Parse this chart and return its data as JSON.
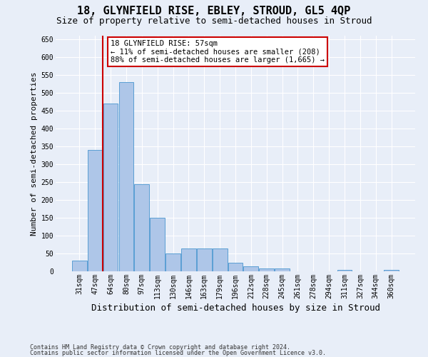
{
  "title": "18, GLYNFIELD RISE, EBLEY, STROUD, GL5 4QP",
  "subtitle": "Size of property relative to semi-detached houses in Stroud",
  "xlabel": "Distribution of semi-detached houses by size in Stroud",
  "ylabel": "Number of semi-detached properties",
  "categories": [
    "31sqm",
    "47sqm",
    "64sqm",
    "80sqm",
    "97sqm",
    "113sqm",
    "130sqm",
    "146sqm",
    "163sqm",
    "179sqm",
    "196sqm",
    "212sqm",
    "228sqm",
    "245sqm",
    "261sqm",
    "278sqm",
    "294sqm",
    "311sqm",
    "327sqm",
    "344sqm",
    "360sqm"
  ],
  "values": [
    30,
    340,
    470,
    530,
    245,
    150,
    50,
    65,
    65,
    65,
    25,
    15,
    8,
    8,
    0,
    0,
    0,
    5,
    0,
    0,
    5
  ],
  "bar_color": "#aec6e8",
  "bar_edge_color": "#5a9fd4",
  "red_line_x": 1.5,
  "red_line_color": "#cc0000",
  "annotation_text": "18 GLYNFIELD RISE: 57sqm\n← 11% of semi-detached houses are smaller (208)\n88% of semi-detached houses are larger (1,665) →",
  "annotation_box_facecolor": "#ffffff",
  "annotation_box_edgecolor": "#cc0000",
  "ylim": [
    0,
    660
  ],
  "yticks": [
    0,
    50,
    100,
    150,
    200,
    250,
    300,
    350,
    400,
    450,
    500,
    550,
    600,
    650
  ],
  "footer_line1": "Contains HM Land Registry data © Crown copyright and database right 2024.",
  "footer_line2": "Contains public sector information licensed under the Open Government Licence v3.0.",
  "bg_color": "#e8eef8",
  "title_fontsize": 11,
  "subtitle_fontsize": 9,
  "ylabel_fontsize": 8,
  "xlabel_fontsize": 9,
  "tick_fontsize": 7,
  "footer_fontsize": 6,
  "annotation_fontsize": 7.5,
  "grid_color": "#ffffff",
  "grid_linewidth": 0.8
}
